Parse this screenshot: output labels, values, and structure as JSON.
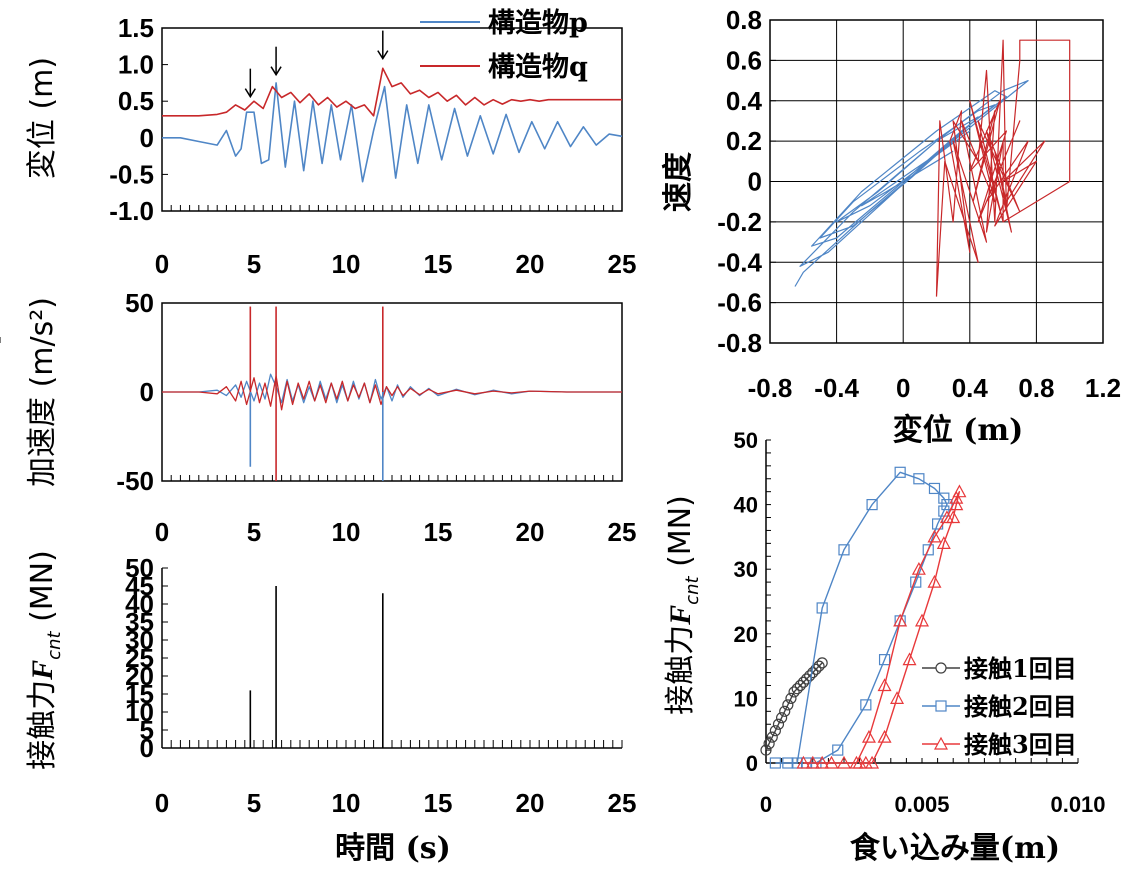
{
  "chart_data": [
    {
      "id": "disp-time",
      "type": "line",
      "ylabel": "変位 (m)",
      "xlim": [
        0,
        25
      ],
      "ylim": [
        -1.0,
        1.5
      ],
      "xticks": [
        "0",
        "5",
        "10",
        "15",
        "20",
        "25"
      ],
      "yticks": [
        "1.5",
        "1.0",
        "0.5",
        "0",
        "-0.5",
        "-1.0"
      ],
      "annotation_marks_at_time": [
        4.8,
        6.2,
        12.0
      ],
      "colors": {
        "p": "#4f86c6",
        "q": "#c8282a"
      },
      "series": [
        {
          "name": "構造物p",
          "x": [
            0,
            1,
            2,
            3,
            3.5,
            4,
            4.3,
            4.6,
            5.0,
            5.4,
            5.8,
            6.2,
            6.7,
            7.2,
            7.7,
            8.2,
            8.7,
            9.2,
            9.7,
            10.3,
            10.9,
            11.5,
            12.1,
            12.7,
            13.3,
            13.9,
            14.5,
            15.2,
            15.9,
            16.6,
            17.3,
            18.0,
            18.7,
            19.4,
            20.1,
            20.8,
            21.5,
            22.2,
            22.9,
            23.6,
            24.3,
            25
          ],
          "y": [
            0,
            0,
            -0.05,
            -0.1,
            0.1,
            -0.25,
            -0.15,
            0.35,
            0.35,
            -0.35,
            -0.3,
            0.75,
            -0.4,
            0.5,
            -0.45,
            0.5,
            -0.35,
            0.45,
            -0.3,
            0.45,
            -0.6,
            0.1,
            0.7,
            -0.55,
            0.45,
            -0.35,
            0.45,
            -0.3,
            0.4,
            -0.25,
            0.3,
            -0.22,
            0.32,
            -0.2,
            0.22,
            -0.15,
            0.22,
            -0.12,
            0.15,
            -0.1,
            0.05,
            0.02
          ]
        },
        {
          "name": "構造物q",
          "x": [
            0,
            1,
            2,
            3,
            3.5,
            4,
            4.5,
            5.0,
            5.5,
            6.0,
            6.5,
            7.0,
            7.5,
            8.0,
            8.5,
            9.0,
            9.5,
            10,
            10.5,
            11,
            11.5,
            12.0,
            12.5,
            13,
            13.5,
            14,
            14.5,
            15,
            15.5,
            16,
            16.5,
            17,
            17.5,
            18,
            18.5,
            19,
            19.5,
            20,
            20.5,
            21,
            22,
            23,
            24,
            25
          ],
          "y": [
            0.3,
            0.3,
            0.3,
            0.32,
            0.35,
            0.45,
            0.38,
            0.5,
            0.4,
            0.7,
            0.55,
            0.62,
            0.48,
            0.6,
            0.45,
            0.55,
            0.42,
            0.5,
            0.4,
            0.45,
            0.3,
            0.95,
            0.7,
            0.75,
            0.6,
            0.65,
            0.55,
            0.62,
            0.5,
            0.58,
            0.45,
            0.55,
            0.45,
            0.52,
            0.46,
            0.52,
            0.5,
            0.52,
            0.5,
            0.52,
            0.52,
            0.52,
            0.52,
            0.52
          ]
        }
      ]
    },
    {
      "id": "acc-time",
      "type": "line",
      "ylabel": "加速度 (m/s²)",
      "xlim": [
        0,
        25
      ],
      "ylim": [
        -50,
        50
      ],
      "xticks": [
        "0",
        "5",
        "10",
        "15",
        "20",
        "25"
      ],
      "yticks": [
        "50",
        "0",
        "-50"
      ],
      "spikes": [
        {
          "series": "q",
          "t": 4.8,
          "y": 48
        },
        {
          "series": "p",
          "t": 4.8,
          "y": -42
        },
        {
          "series": "q",
          "t": 6.2,
          "y": 48
        },
        {
          "series": "q",
          "t": 6.2,
          "y": -50
        },
        {
          "series": "q",
          "t": 12.0,
          "y": 48
        },
        {
          "series": "p",
          "t": 12.0,
          "y": -50
        }
      ],
      "series": [
        {
          "name": "p",
          "x": [
            0,
            2,
            3,
            3.5,
            4,
            4.3,
            4.6,
            5,
            5.3,
            5.6,
            5.9,
            6.2,
            6.5,
            6.8,
            7.1,
            7.4,
            7.7,
            8,
            8.3,
            8.6,
            8.9,
            9.2,
            9.5,
            9.8,
            10.1,
            10.4,
            10.7,
            11,
            11.3,
            11.6,
            11.9,
            12.2,
            12.5,
            12.8,
            13.1,
            13.5,
            14,
            14.5,
            15,
            16,
            17,
            18,
            19,
            20,
            22,
            25
          ],
          "y": [
            0,
            0,
            1,
            -2,
            4,
            -3,
            6,
            -5,
            5,
            -4,
            10,
            3,
            -6,
            7,
            -5,
            4,
            -6,
            3,
            -5,
            6,
            -4,
            5,
            -6,
            4,
            -5,
            6,
            -4,
            5,
            -6,
            7,
            -4,
            3,
            -5,
            4,
            -3,
            3,
            -2,
            2,
            -2,
            1.5,
            -1.5,
            1,
            -1,
            0.5,
            0,
            0
          ]
        },
        {
          "name": "q",
          "x": [
            0,
            2,
            3,
            3.5,
            4,
            4.3,
            4.6,
            5,
            5.3,
            5.6,
            5.9,
            6.2,
            6.5,
            6.8,
            7.1,
            7.4,
            7.7,
            8,
            8.3,
            8.6,
            8.9,
            9.2,
            9.5,
            9.8,
            10.1,
            10.4,
            10.7,
            11,
            11.3,
            11.6,
            11.9,
            12.2,
            12.5,
            12.8,
            13.1,
            13.5,
            14,
            14.5,
            15,
            16,
            17,
            18,
            19,
            20,
            22,
            25
          ],
          "y": [
            0,
            0,
            -1,
            3,
            -5,
            6,
            -7,
            8,
            -6,
            5,
            -8,
            9,
            -10,
            6,
            -7,
            5,
            -4,
            6,
            -5,
            4,
            -6,
            5,
            -4,
            6,
            -5,
            4,
            -3,
            5,
            -6,
            4,
            -7,
            3,
            -2,
            3,
            -2,
            2,
            -1.5,
            1.5,
            -1,
            1,
            -1,
            0.5,
            -0.5,
            0.5,
            0,
            0
          ]
        }
      ]
    },
    {
      "id": "force-time",
      "type": "bar",
      "ylabel_main": "接触力",
      "ylabel_sym": "F",
      "ylabel_sub": "cnt",
      "ylabel_unit": " (MN)",
      "xlabel": "時間 (s)",
      "xlim": [
        0,
        25
      ],
      "ylim": [
        0,
        50
      ],
      "xticks": [
        "0",
        "5",
        "10",
        "15",
        "20",
        "25"
      ],
      "yticks": [
        "50",
        "45",
        "40",
        "35",
        "30",
        "25",
        "20",
        "15",
        "10",
        "5",
        "0"
      ],
      "x": [
        4.8,
        6.2,
        12.0
      ],
      "values": [
        16,
        45,
        43
      ]
    },
    {
      "id": "vel-disp",
      "type": "line",
      "ylabel": "速度",
      "xlabel": "変位 (m)",
      "xlim": [
        -0.8,
        1.2
      ],
      "ylim": [
        -0.8,
        0.8
      ],
      "xticks": [
        "-0.8",
        "-0.4",
        "0",
        "0.4",
        "0.8",
        "1.2"
      ],
      "yticks": [
        "0.8",
        "0.6",
        "0.4",
        "0.2",
        "0",
        "-0.2",
        "-0.4",
        "-0.6",
        "-0.8"
      ],
      "grid": true,
      "series": [
        {
          "name": "p",
          "x": [
            -0.65,
            -0.6,
            -0.2,
            0.3,
            0.75,
            0.75,
            0.6,
            0.2,
            -0.3,
            -0.62,
            -0.45,
            -0.05,
            0.35,
            0.62,
            0.55,
            0.2,
            -0.25,
            -0.55,
            -0.4,
            0.0,
            0.35,
            0.55,
            0.45,
            0.1,
            -0.3,
            -0.5,
            -0.3,
            0.05,
            0.4,
            0.45,
            0.2,
            -0.15,
            -0.4,
            -0.2,
            0.15,
            0.4,
            0.35,
            0.05,
            -0.25,
            -0.1,
            0.2,
            0.3
          ],
          "y": [
            -0.52,
            -0.45,
            -0.15,
            0.2,
            0.5,
            0.5,
            0.45,
            0.2,
            -0.15,
            -0.42,
            -0.35,
            -0.05,
            0.25,
            0.42,
            0.45,
            0.25,
            -0.05,
            -0.32,
            -0.28,
            0.0,
            0.25,
            0.38,
            0.35,
            0.15,
            -0.1,
            -0.28,
            -0.22,
            0.02,
            0.28,
            0.32,
            0.2,
            -0.05,
            -0.2,
            -0.12,
            0.1,
            0.25,
            0.22,
            0.05,
            -0.12,
            -0.05,
            0.1,
            0.15
          ]
        },
        {
          "name": "q",
          "x": [
            0.2,
            0.22,
            0.3,
            0.35,
            0.28,
            0.4,
            0.3,
            0.45,
            0.5,
            0.55,
            0.6,
            0.62,
            0.7,
            0.7,
            1.0,
            1.0,
            0.6,
            0.6,
            0.5,
            0.55,
            0.42,
            0.58,
            0.4,
            0.62,
            0.45,
            0.7,
            0.5,
            0.75,
            0.55,
            0.8,
            0.6,
            0.85,
            0.62,
            0.55,
            0.65,
            0.5,
            0.7,
            0.45,
            0.6,
            0.4,
            0.55,
            0.35,
            0.5,
            0.3,
            0.45,
            0.25,
            0.2
          ],
          "y": [
            -0.57,
            0.3,
            -0.2,
            0.35,
            0.2,
            -0.35,
            0.3,
            0.1,
            0.55,
            -0.2,
            0.7,
            -0.15,
            0.6,
            0.7,
            0.7,
            0.0,
            -0.2,
            0.2,
            -0.25,
            0.35,
            -0.1,
            0.4,
            0.05,
            0.25,
            -0.2,
            0.3,
            -0.1,
            0.2,
            -0.22,
            0.1,
            0.0,
            0.2,
            -0.1,
            0.15,
            -0.25,
            0.25,
            -0.15,
            0.3,
            -0.2,
            0.4,
            -0.1,
            0.3,
            -0.3,
            0.2,
            -0.4,
            0.1,
            -0.57
          ]
        }
      ]
    },
    {
      "id": "force-pen",
      "type": "scatter",
      "ylabel_main": "接触力",
      "ylabel_sym": "F",
      "ylabel_sub": "cnt",
      "ylabel_unit": " (MN)",
      "xlabel": "食い込み量(m)",
      "xlim": [
        0,
        0.01
      ],
      "ylim": [
        0,
        50
      ],
      "xticks": [
        "0",
        "0.005",
        "0.010"
      ],
      "yticks": [
        "50",
        "40",
        "30",
        "20",
        "10",
        "0"
      ],
      "legend": "right",
      "series": [
        {
          "name": "接触1回目",
          "marker": "circle",
          "color": "#404040",
          "x": [
            0.0,
            0.0001,
            0.0002,
            0.0003,
            0.0004,
            0.0005,
            0.0006,
            0.0007,
            0.0008,
            0.0009,
            0.001,
            0.0011,
            0.0012,
            0.0013,
            0.0014,
            0.0015,
            0.0016,
            0.0017,
            0.0018
          ],
          "y": [
            2,
            3,
            4,
            5,
            6,
            7,
            8,
            9,
            10,
            11,
            11.5,
            12,
            12.5,
            13,
            13.5,
            14,
            14.5,
            15,
            15.5
          ]
        },
        {
          "name": "接触2回目",
          "marker": "square",
          "color": "#4f86c6",
          "x": [
            0.0003,
            0.0007,
            0.001,
            0.0018,
            0.0025,
            0.0034,
            0.0043,
            0.0049,
            0.0054,
            0.0057,
            0.0058,
            0.0057,
            0.0055,
            0.0052,
            0.0048,
            0.0043,
            0.0038,
            0.0032,
            0.0023,
            0.0016,
            0.0013
          ],
          "y": [
            0,
            0,
            0,
            24,
            33,
            40,
            45,
            44,
            42.5,
            41,
            40,
            39,
            37,
            33,
            28,
            22,
            16,
            9,
            2,
            0,
            0
          ]
        },
        {
          "name": "接触3回目",
          "marker": "triangle",
          "color": "#e8393b",
          "x": [
            0.0012,
            0.0015,
            0.0018,
            0.0021,
            0.0025,
            0.0029,
            0.0033,
            0.0038,
            0.0043,
            0.0049,
            0.0054,
            0.0058,
            0.0061,
            0.0062,
            0.0061,
            0.006,
            0.0057,
            0.0054,
            0.005,
            0.0046,
            0.0042,
            0.0038,
            0.0034,
            0.0032,
            0.003
          ],
          "y": [
            0,
            0,
            0,
            0,
            0,
            0,
            4,
            12,
            22,
            30,
            35,
            38,
            41,
            42,
            40,
            38,
            34,
            28,
            22,
            16,
            10,
            4,
            0,
            0,
            0
          ]
        }
      ]
    }
  ]
}
